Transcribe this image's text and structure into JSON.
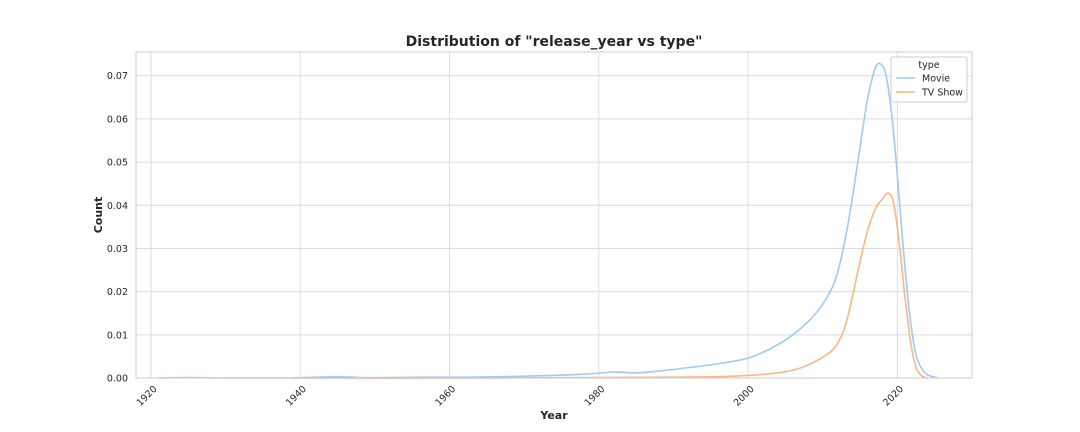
{
  "chart_data": {
    "type": "line",
    "title": "Distribution of \"release_year vs type\"",
    "xlabel": "Year",
    "ylabel": "Count",
    "xlim": [
      1918,
      2030
    ],
    "ylim": [
      0,
      0.0755
    ],
    "x_ticks": [
      1920,
      1940,
      1960,
      1980,
      2000,
      2020
    ],
    "y_ticks": [
      0.0,
      0.01,
      0.02,
      0.03,
      0.04,
      0.05,
      0.06,
      0.07
    ],
    "y_tick_labels": [
      "0.00",
      "0.01",
      "0.02",
      "0.03",
      "0.04",
      "0.05",
      "0.06",
      "0.07"
    ],
    "grid": true,
    "legend": {
      "title": "type",
      "position": "top-right"
    },
    "series": [
      {
        "name": "Movie",
        "color": "#a1c9f4",
        "points": [
          [
            1939,
            0.0
          ],
          [
            1942,
            0.0002
          ],
          [
            1945,
            0.0003
          ],
          [
            1948,
            0.0001
          ],
          [
            1952,
            0.0001
          ],
          [
            1957,
            0.0002
          ],
          [
            1962,
            0.0002
          ],
          [
            1967,
            0.0003
          ],
          [
            1972,
            0.0005
          ],
          [
            1977,
            0.0008
          ],
          [
            1980,
            0.0011
          ],
          [
            1982,
            0.0014
          ],
          [
            1985,
            0.0012
          ],
          [
            1988,
            0.0016
          ],
          [
            1992,
            0.0024
          ],
          [
            1996,
            0.0033
          ],
          [
            2000,
            0.0046
          ],
          [
            2003,
            0.0068
          ],
          [
            2006,
            0.01
          ],
          [
            2009,
            0.0148
          ],
          [
            2011,
            0.02
          ],
          [
            2012,
            0.0245
          ],
          [
            2013,
            0.032
          ],
          [
            2014,
            0.042
          ],
          [
            2015,
            0.0535
          ],
          [
            2016,
            0.0645
          ],
          [
            2017,
            0.0715
          ],
          [
            2017.7,
            0.0728
          ],
          [
            2018.5,
            0.07
          ],
          [
            2019.3,
            0.06
          ],
          [
            2020.0,
            0.047
          ],
          [
            2020.7,
            0.032
          ],
          [
            2021.5,
            0.017
          ],
          [
            2022.3,
            0.007
          ],
          [
            2023.0,
            0.003
          ],
          [
            2024.0,
            0.0008
          ],
          [
            2025.5,
            0.0
          ]
        ]
      },
      {
        "name": "TV Show",
        "color": "#ffb482",
        "points": [
          [
            1921,
            0.0
          ],
          [
            1925,
            0.0001
          ],
          [
            1930,
            0.0
          ],
          [
            1940,
            0.0
          ],
          [
            1960,
            0.0
          ],
          [
            1980,
            0.0001
          ],
          [
            1990,
            0.0002
          ],
          [
            1996,
            0.0003
          ],
          [
            2000,
            0.0006
          ],
          [
            2003,
            0.001
          ],
          [
            2006,
            0.0018
          ],
          [
            2008,
            0.003
          ],
          [
            2010,
            0.0048
          ],
          [
            2011,
            0.006
          ],
          [
            2012,
            0.008
          ],
          [
            2013,
            0.012
          ],
          [
            2014,
            0.019
          ],
          [
            2015,
            0.027
          ],
          [
            2016,
            0.034
          ],
          [
            2017,
            0.039
          ],
          [
            2018,
            0.0415
          ],
          [
            2018.8,
            0.0428
          ],
          [
            2019.5,
            0.0405
          ],
          [
            2020.2,
            0.032
          ],
          [
            2021.0,
            0.019
          ],
          [
            2021.8,
            0.008
          ],
          [
            2022.5,
            0.0025
          ],
          [
            2023.2,
            0.0006
          ],
          [
            2024.0,
            0.0
          ]
        ]
      }
    ]
  }
}
